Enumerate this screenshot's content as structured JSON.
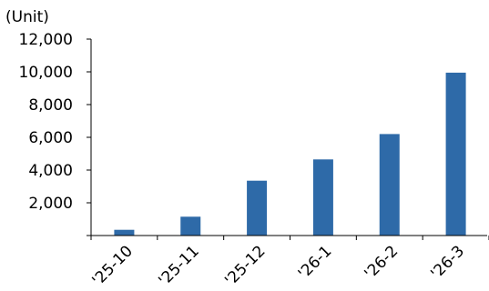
{
  "chart_data": {
    "type": "bar",
    "unit_label": "(Unit)",
    "categories": [
      "'25-10",
      "'25-11",
      "'25-12",
      "'26-1",
      "'26-2",
      "'26-3"
    ],
    "values": [
      350,
      1150,
      3350,
      4650,
      6200,
      9950
    ],
    "ylim": [
      0,
      12000
    ],
    "yticks": [
      0,
      2000,
      4000,
      6000,
      8000,
      10000,
      12000
    ],
    "ytick_labels": [
      "",
      "2,000",
      "4,000",
      "6,000",
      "8,000",
      "10,000",
      "12,000"
    ],
    "grid": false,
    "legend": "none",
    "bar_color": "#2e6aa8"
  }
}
